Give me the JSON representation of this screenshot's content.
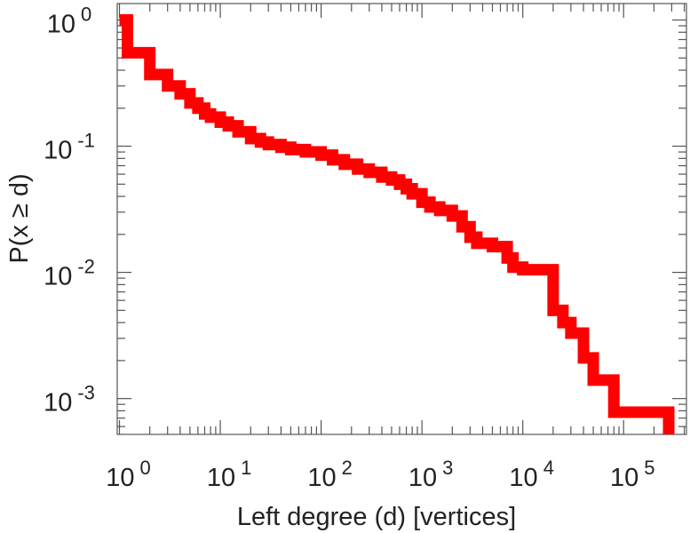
{
  "chart_data": {
    "type": "line",
    "xlabel": "Left degree (d) [vertices]",
    "ylabel": "P(x ≥ d)",
    "xscale": "log",
    "yscale": "log",
    "xlim": [
      0.95,
      420000
    ],
    "ylim": [
      0.00052,
      1.35
    ],
    "grid": false,
    "x_ticks": [
      {
        "value": 1,
        "base": "10",
        "exp": "0"
      },
      {
        "value": 10,
        "base": "10",
        "exp": "1"
      },
      {
        "value": 100,
        "base": "10",
        "exp": "2"
      },
      {
        "value": 1000,
        "base": "10",
        "exp": "3"
      },
      {
        "value": 10000,
        "base": "10",
        "exp": "4"
      },
      {
        "value": 100000,
        "base": "10",
        "exp": "5"
      }
    ],
    "y_ticks": [
      {
        "value": 1,
        "base": "10",
        "exp": "0"
      },
      {
        "value": 0.1,
        "base": "10",
        "exp": "-1"
      },
      {
        "value": 0.01,
        "base": "10",
        "exp": "-2"
      },
      {
        "value": 0.001,
        "base": "10",
        "exp": "-3"
      }
    ],
    "series": [
      {
        "color": "#ff0000",
        "step": true,
        "x": [
          1,
          1.2,
          2,
          3,
          4,
          5,
          6,
          7,
          8,
          10,
          12,
          15,
          20,
          25,
          30,
          40,
          50,
          70,
          100,
          130,
          170,
          230,
          300,
          400,
          500,
          600,
          700,
          800,
          1000,
          1200,
          1500,
          2000,
          2500,
          3000,
          3500,
          5000,
          7000,
          8000,
          10000,
          20000,
          25000,
          30000,
          40000,
          50000,
          80000,
          150000,
          200000,
          280000
        ],
        "y": [
          1,
          0.55,
          0.37,
          0.3,
          0.26,
          0.22,
          0.2,
          0.18,
          0.17,
          0.155,
          0.145,
          0.13,
          0.115,
          0.108,
          0.103,
          0.098,
          0.094,
          0.09,
          0.085,
          0.078,
          0.072,
          0.066,
          0.062,
          0.057,
          0.054,
          0.05,
          0.046,
          0.042,
          0.036,
          0.033,
          0.031,
          0.028,
          0.023,
          0.019,
          0.017,
          0.016,
          0.013,
          0.011,
          0.0105,
          0.005,
          0.004,
          0.0033,
          0.0021,
          0.0014,
          0.00078,
          0.00078,
          0.00078,
          0.00052
        ]
      }
    ]
  }
}
